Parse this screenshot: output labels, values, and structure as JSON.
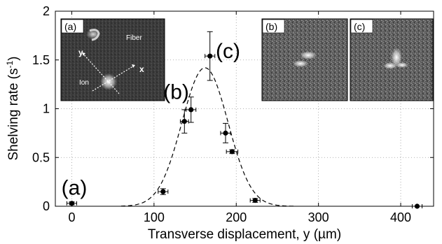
{
  "chart_data": {
    "type": "scatter",
    "xlabel": "Transverse displacement, y (µm)",
    "ylabel": "Shelving rate (s",
    "ylabel_sup": "-1",
    "ylabel_close": ")",
    "xlim": [
      -20,
      440
    ],
    "ylim": [
      0,
      2
    ],
    "xticks": [
      0,
      100,
      200,
      300,
      400
    ],
    "yticks": [
      0,
      0.5,
      1,
      1.5,
      2
    ],
    "ytick_labels": [
      "0",
      "0.5",
      "1",
      "1.5",
      "2"
    ],
    "grid": true,
    "series": [
      {
        "kind": "points-with-error-bars",
        "points": [
          {
            "x": 0,
            "y": 0.03,
            "xerr": 6,
            "yerr": 0.015
          },
          {
            "x": 111,
            "y": 0.15,
            "xerr": 6,
            "yerr": 0.03
          },
          {
            "x": 137,
            "y": 0.87,
            "xerr": 5,
            "yerr": 0.12
          },
          {
            "x": 145,
            "y": 0.99,
            "xerr": 6,
            "yerr": 0.13
          },
          {
            "x": 168,
            "y": 1.54,
            "xerr": 6,
            "yerr": 0.25
          },
          {
            "x": 187,
            "y": 0.75,
            "xerr": 6,
            "yerr": 0.1
          },
          {
            "x": 195,
            "y": 0.56,
            "xerr": 7,
            "yerr": 0.02
          },
          {
            "x": 223,
            "y": 0.06,
            "xerr": 6,
            "yerr": 0.02
          },
          {
            "x": 420,
            "y": 0.0,
            "xerr": 6,
            "yerr": 0.0
          }
        ]
      },
      {
        "kind": "gaussian-fit-dashed",
        "amplitude": 1.42,
        "center": 162,
        "sigma": 28
      }
    ],
    "annotations": [
      {
        "text": "(a)",
        "x": 3,
        "y": 0.12
      },
      {
        "text": "(b)",
        "x": 127,
        "y": 1.1
      },
      {
        "text": "(c)",
        "x": 190,
        "y": 1.52
      }
    ]
  },
  "insets": {
    "a": {
      "tag": "(a)",
      "fiber_label": "Fiber",
      "ion_label": "Ion",
      "axis_x": "x",
      "axis_y": "y"
    },
    "b": {
      "tag": "(b)"
    },
    "c": {
      "tag": "(c)"
    }
  }
}
